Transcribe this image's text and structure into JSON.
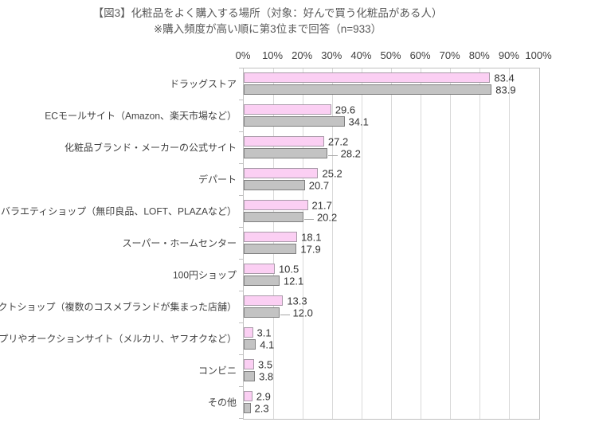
{
  "chart_data": {
    "type": "bar",
    "orientation": "horizontal",
    "title": "【図3】化粧品をよく購入する場所（対象：好んで買う化粧品がある人）",
    "subtitle": "※購入頻度が高い順に第3位まで回答（n=933）",
    "sample_size_note": "n=933",
    "x_axis": {
      "min": 0,
      "max": 100,
      "tick_step": 10,
      "ticks": [
        "0%",
        "10%",
        "20%",
        "30%",
        "40%",
        "50%",
        "60%",
        "70%",
        "80%",
        "90%",
        "100%"
      ],
      "grid": true,
      "tick_label_position": "top"
    },
    "legend": "none",
    "categories": [
      "ドラッグストア",
      "ECモールサイト（Amazon、楽天市場など）",
      "化粧品ブランド・メーカーの公式サイト",
      "デパート",
      "活雑貨ショップ、バラエティショップ（無印良品、LOFT、PLAZAなど）",
      "スーパー・ホームセンター",
      "100円ショップ",
      "コスメセレクトショップ（複数のコスメブランドが集まった店舗）",
      "フリマアプリやオークションサイト（メルカリ、ヤフオクなど）",
      "コンビニ",
      "その他"
    ],
    "series": [
      {
        "key": "pink",
        "fill_color": "#FBCFF3",
        "border_color": "#A89AA8",
        "values": [
          "83.4",
          "29.6",
          "27.2",
          "25.2",
          "21.7",
          "18.1",
          "10.5",
          "13.3",
          "3.1",
          "3.5",
          "2.9"
        ]
      },
      {
        "key": "gray",
        "fill_color": "#C3C3C3",
        "border_color": "#7F7F7F",
        "values": [
          "83.9",
          "34.1",
          "28.2",
          "20.7",
          "20.2",
          "17.9",
          "12.1",
          "12.0",
          "4.1",
          "3.8",
          "2.3"
        ]
      }
    ],
    "label_leaders": {
      "series_index": 1,
      "category_indices": [
        2,
        4,
        7
      ]
    },
    "colors": {
      "title_text": "#595959",
      "axis_text": "#404040",
      "value_text": "#333333",
      "gridline": "#D9D9D9",
      "plot_border": "#C0C0C0"
    }
  }
}
